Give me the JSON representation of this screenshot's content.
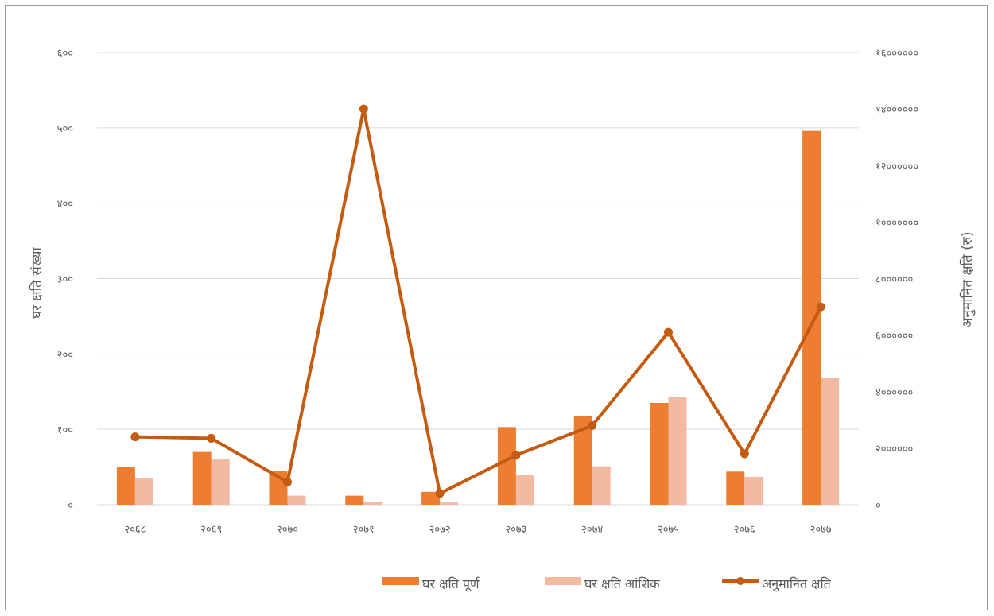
{
  "chart_data": {
    "type": "bar",
    "categories": [
      "२०६८",
      "२०६९",
      "२०७०",
      "२०७१",
      "२०७२",
      "२०७३",
      "२०७४",
      "२०७५",
      "२०७६",
      "२०७७"
    ],
    "series": [
      {
        "name": "घर क्षति पूर्ण",
        "type": "bar",
        "axis": "left",
        "color": "#ED7D31",
        "values": [
          50,
          70,
          45,
          12,
          17,
          103,
          118,
          135,
          44,
          496
        ]
      },
      {
        "name": "घर क्षति आंशिक",
        "type": "bar",
        "axis": "left",
        "color": "#F4B9A1",
        "values": [
          35,
          60,
          12,
          4,
          3,
          39,
          51,
          143,
          37,
          168
        ]
      },
      {
        "name": "अनुमानित क्षति",
        "type": "line",
        "axis": "right",
        "color": "#C55A11",
        "values": [
          24000000,
          23500000,
          8000000,
          140000000,
          4000000,
          17500000,
          28000000,
          61000000,
          18000000,
          70000000
        ]
      }
    ],
    "ylabel": "घर क्षति संख्या",
    "y2label": "अनुमानित क्षति (रु)",
    "ylim": [
      0,
      600
    ],
    "y2lim": [
      0,
      160000000
    ],
    "yticks": [
      "०",
      "१००",
      "२००",
      "३००",
      "४००",
      "५००",
      "६००"
    ],
    "y2ticks": [
      "०",
      "२००००००",
      "४००००००",
      "६००००००",
      "८००००००",
      "१०००००००",
      "१२००००००",
      "१४००००००",
      "१६००००००"
    ],
    "grid": true,
    "legend_position": "bottom-right"
  }
}
